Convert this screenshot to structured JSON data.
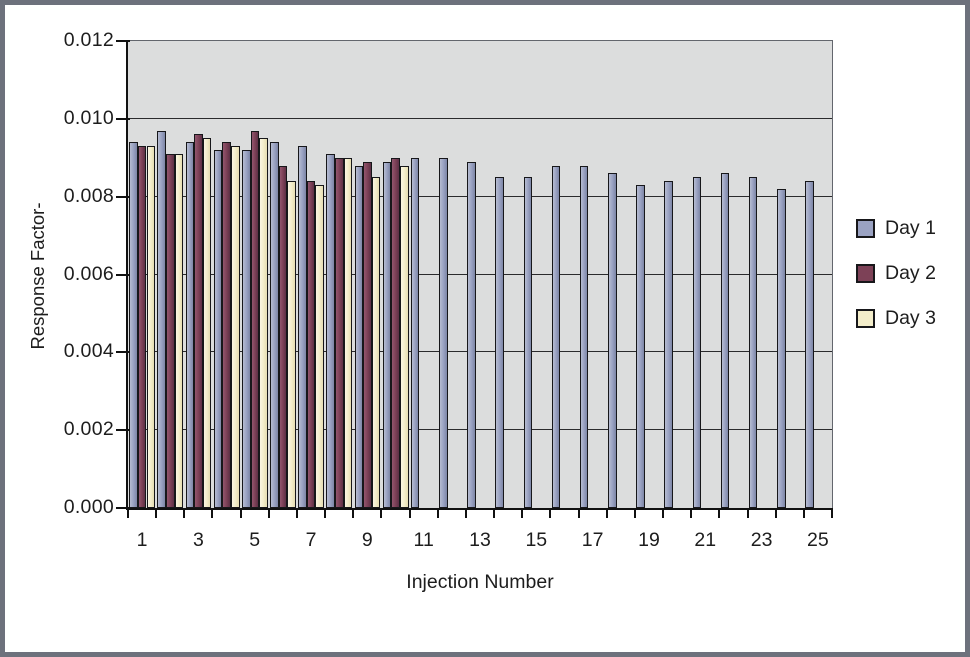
{
  "chart_data": {
    "type": "bar",
    "title": "",
    "xlabel": "Injection Number",
    "ylabel": "Response Factor-",
    "ylim": [
      0,
      0.012
    ],
    "grid": true,
    "plot_bg": "#dcdddd",
    "gridline_step": 0.002,
    "legend_position": "right",
    "categories": [
      1,
      2,
      3,
      4,
      5,
      6,
      7,
      8,
      9,
      10,
      11,
      12,
      13,
      14,
      15,
      16,
      17,
      18,
      19,
      20,
      21,
      22,
      23,
      24,
      25
    ],
    "x_tick_labels": [
      "1",
      "3",
      "5",
      "7",
      "9",
      "11",
      "13",
      "15",
      "17",
      "19",
      "21",
      "23",
      "25"
    ],
    "y_tick_labels": [
      "0.000",
      "0.002",
      "0.004",
      "0.006",
      "0.008",
      "0.010",
      "0.012"
    ],
    "series": [
      {
        "name": "Day 1",
        "color": "#9aa2c2",
        "values": [
          0.0094,
          0.0097,
          0.0094,
          0.0092,
          0.0092,
          0.0094,
          0.0093,
          0.0091,
          0.0088,
          0.0089,
          0.009,
          0.009,
          0.0089,
          0.0085,
          0.0085,
          0.0088,
          0.0088,
          0.0086,
          0.0083,
          0.0084,
          0.0085,
          0.0086,
          0.0085,
          0.0082,
          0.0084
        ]
      },
      {
        "name": "Day 2",
        "color": "#7d4157",
        "values": [
          0.0093,
          0.0091,
          0.0096,
          0.0094,
          0.0097,
          0.0088,
          0.0084,
          0.009,
          0.0089,
          0.009
        ]
      },
      {
        "name": "Day 3",
        "color": "#f3edca",
        "values": [
          0.0093,
          0.0091,
          0.0095,
          0.0093,
          0.0095,
          0.0084,
          0.0083,
          0.009,
          0.0085,
          0.0088
        ]
      }
    ]
  }
}
